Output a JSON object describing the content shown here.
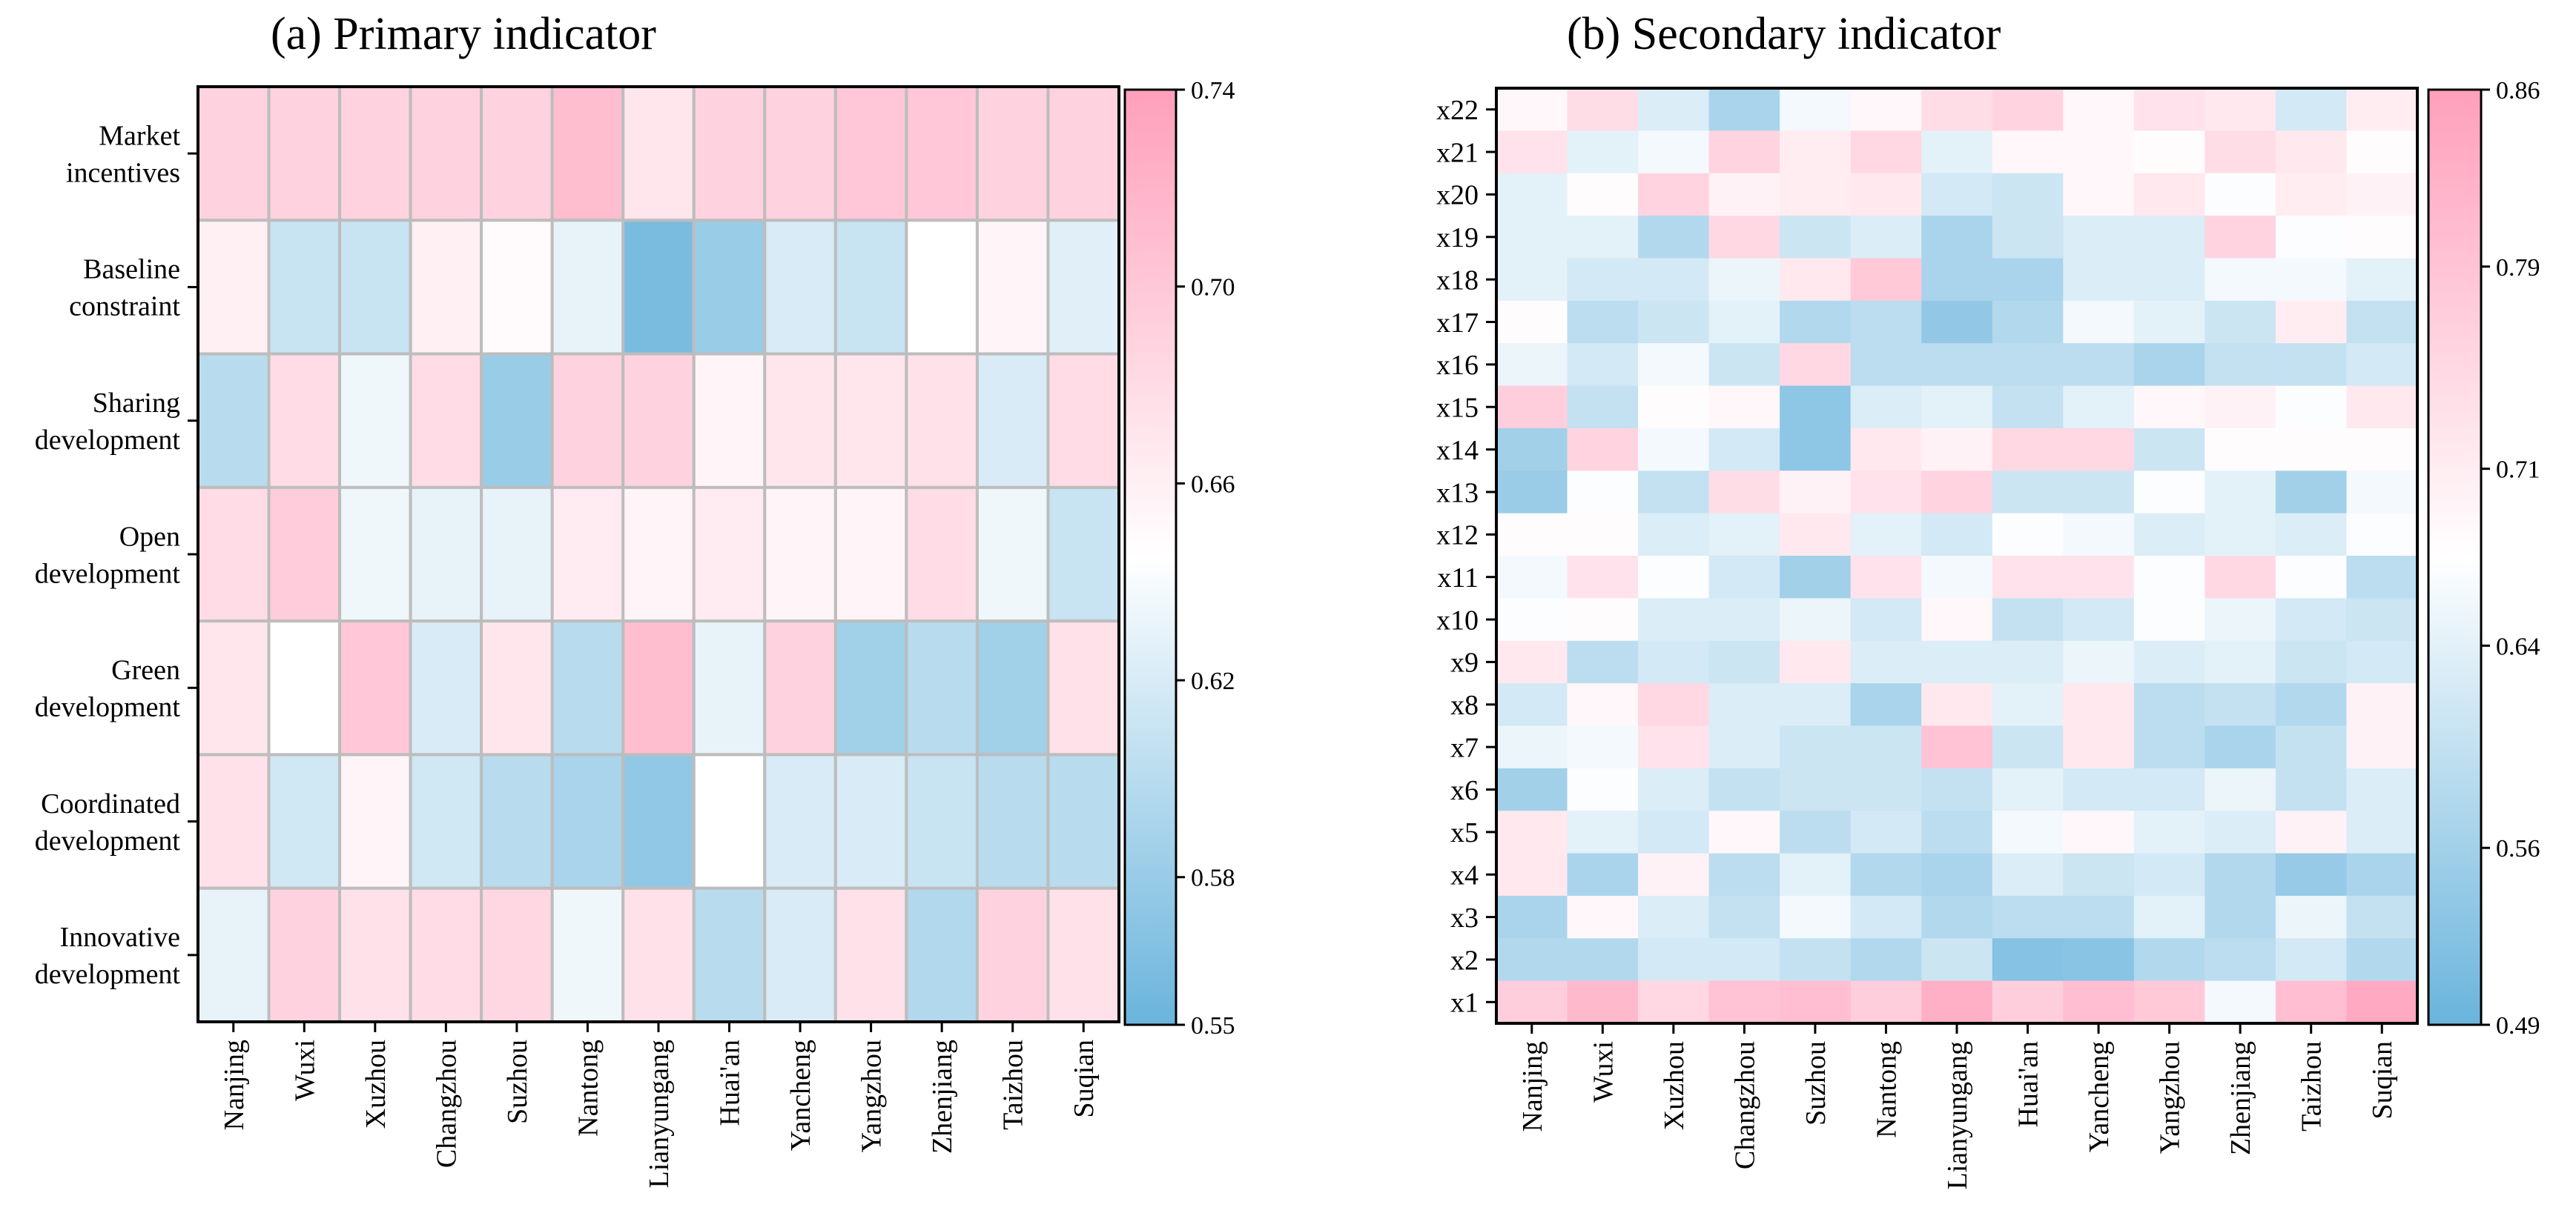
{
  "chart_data": [
    {
      "type": "heatmap",
      "title": "(a)  Primary indicator",
      "x_categories": [
        "Nanjing",
        "Wuxi",
        "Xuzhou",
        "Changzhou",
        "Suzhou",
        "Nantong",
        "Lianyungang",
        "Huai'an",
        "Yancheng",
        "Yangzhou",
        "Zhenjiang",
        "Taizhou",
        "Suqian"
      ],
      "y_categories": [
        [
          "Market",
          "incentives"
        ],
        [
          "Baseline",
          "constraint"
        ],
        [
          "Sharing",
          "development"
        ],
        [
          "Open",
          "development"
        ],
        [
          "Green",
          "development"
        ],
        [
          "Coordinated",
          "development"
        ],
        [
          "Innovative",
          "development"
        ]
      ],
      "values": [
        [
          0.69,
          0.69,
          0.69,
          0.69,
          0.69,
          0.71,
          0.67,
          0.69,
          0.69,
          0.7,
          0.7,
          0.69,
          0.69
        ],
        [
          0.66,
          0.61,
          0.61,
          0.66,
          0.65,
          0.63,
          0.56,
          0.58,
          0.62,
          0.61,
          0.645,
          0.655,
          0.625
        ],
        [
          0.6,
          0.68,
          0.635,
          0.68,
          0.58,
          0.69,
          0.69,
          0.655,
          0.67,
          0.67,
          0.675,
          0.62,
          0.68
        ],
        [
          0.68,
          0.695,
          0.635,
          0.63,
          0.63,
          0.665,
          0.655,
          0.665,
          0.655,
          0.655,
          0.68,
          0.635,
          0.61
        ],
        [
          0.67,
          0.645,
          0.7,
          0.62,
          0.67,
          0.6,
          0.71,
          0.63,
          0.69,
          0.585,
          0.6,
          0.585,
          0.675
        ],
        [
          0.675,
          0.615,
          0.655,
          0.615,
          0.6,
          0.59,
          0.575,
          0.645,
          0.62,
          0.62,
          0.61,
          0.6,
          0.6
        ],
        [
          0.63,
          0.69,
          0.675,
          0.68,
          0.685,
          0.635,
          0.675,
          0.6,
          0.62,
          0.675,
          0.595,
          0.69,
          0.675
        ]
      ],
      "vmin": 0.55,
      "vmax": 0.74,
      "colorbar_ticks": [
        "0.74",
        "0.70",
        "0.66",
        "0.62",
        "0.58",
        "0.55"
      ],
      "cell_grid": true
    },
    {
      "type": "heatmap",
      "title": "(b)  Secondary indicator",
      "x_categories": [
        "Nanjing",
        "Wuxi",
        "Xuzhou",
        "Changzhou",
        "Suzhou",
        "Nantong",
        "Lianyungang",
        "Huai'an",
        "Yancheng",
        "Yangzhou",
        "Zhenjiang",
        "Taizhou",
        "Suqian"
      ],
      "y_categories": [
        "x22",
        "x21",
        "x20",
        "x19",
        "x18",
        "x17",
        "x16",
        "x15",
        "x14",
        "x13",
        "x12",
        "x11",
        "x10",
        "x9",
        "x8",
        "x7",
        "x6",
        "x5",
        "x4",
        "x3",
        "x2",
        "x1"
      ],
      "values": [
        [
          0.69,
          0.74,
          0.63,
          0.57,
          0.66,
          0.69,
          0.74,
          0.76,
          0.69,
          0.73,
          0.72,
          0.62,
          0.71
        ],
        [
          0.73,
          0.64,
          0.66,
          0.76,
          0.71,
          0.75,
          0.64,
          0.69,
          0.69,
          0.68,
          0.74,
          0.72,
          0.68
        ],
        [
          0.64,
          0.68,
          0.76,
          0.7,
          0.71,
          0.72,
          0.62,
          0.61,
          0.69,
          0.72,
          0.67,
          0.71,
          0.7
        ],
        [
          0.64,
          0.64,
          0.58,
          0.75,
          0.61,
          0.63,
          0.57,
          0.61,
          0.63,
          0.63,
          0.76,
          0.67,
          0.68
        ],
        [
          0.64,
          0.62,
          0.62,
          0.65,
          0.72,
          0.78,
          0.57,
          0.57,
          0.63,
          0.63,
          0.66,
          0.66,
          0.64
        ],
        [
          0.68,
          0.59,
          0.61,
          0.64,
          0.58,
          0.59,
          0.54,
          0.58,
          0.66,
          0.64,
          0.61,
          0.71,
          0.6
        ],
        [
          0.65,
          0.62,
          0.66,
          0.61,
          0.75,
          0.59,
          0.59,
          0.59,
          0.59,
          0.57,
          0.6,
          0.6,
          0.62
        ],
        [
          0.77,
          0.6,
          0.68,
          0.69,
          0.535,
          0.63,
          0.64,
          0.6,
          0.64,
          0.69,
          0.7,
          0.67,
          0.72
        ],
        [
          0.56,
          0.76,
          0.66,
          0.62,
          0.535,
          0.72,
          0.7,
          0.75,
          0.75,
          0.61,
          0.68,
          0.68,
          0.68
        ],
        [
          0.55,
          0.67,
          0.6,
          0.74,
          0.7,
          0.73,
          0.76,
          0.61,
          0.61,
          0.67,
          0.64,
          0.56,
          0.66
        ],
        [
          0.68,
          0.68,
          0.63,
          0.64,
          0.72,
          0.64,
          0.62,
          0.67,
          0.66,
          0.63,
          0.64,
          0.63,
          0.67
        ],
        [
          0.66,
          0.73,
          0.67,
          0.62,
          0.56,
          0.73,
          0.66,
          0.73,
          0.73,
          0.67,
          0.75,
          0.67,
          0.59
        ],
        [
          0.67,
          0.68,
          0.63,
          0.63,
          0.65,
          0.62,
          0.69,
          0.6,
          0.62,
          0.67,
          0.65,
          0.62,
          0.61
        ],
        [
          0.72,
          0.59,
          0.62,
          0.61,
          0.72,
          0.63,
          0.63,
          0.63,
          0.65,
          0.63,
          0.64,
          0.61,
          0.62
        ],
        [
          0.62,
          0.69,
          0.75,
          0.63,
          0.63,
          0.57,
          0.72,
          0.64,
          0.72,
          0.59,
          0.6,
          0.58,
          0.7
        ],
        [
          0.65,
          0.66,
          0.73,
          0.63,
          0.61,
          0.61,
          0.79,
          0.61,
          0.72,
          0.59,
          0.57,
          0.6,
          0.7
        ],
        [
          0.56,
          0.67,
          0.63,
          0.6,
          0.61,
          0.61,
          0.6,
          0.64,
          0.62,
          0.62,
          0.65,
          0.6,
          0.63
        ],
        [
          0.72,
          0.64,
          0.62,
          0.69,
          0.59,
          0.62,
          0.59,
          0.66,
          0.69,
          0.64,
          0.63,
          0.7,
          0.63
        ],
        [
          0.72,
          0.57,
          0.7,
          0.59,
          0.64,
          0.58,
          0.57,
          0.63,
          0.61,
          0.62,
          0.58,
          0.545,
          0.57
        ],
        [
          0.57,
          0.69,
          0.63,
          0.6,
          0.66,
          0.62,
          0.58,
          0.59,
          0.59,
          0.64,
          0.58,
          0.65,
          0.6
        ],
        [
          0.58,
          0.58,
          0.62,
          0.62,
          0.6,
          0.58,
          0.61,
          0.525,
          0.53,
          0.58,
          0.59,
          0.62,
          0.58
        ],
        [
          0.77,
          0.81,
          0.75,
          0.79,
          0.8,
          0.77,
          0.83,
          0.77,
          0.8,
          0.78,
          0.66,
          0.8,
          0.84
        ]
      ],
      "vmin": 0.49,
      "vmax": 0.86,
      "colorbar_ticks": [
        "0.86",
        "0.79",
        "0.71",
        "0.64",
        "0.56",
        "0.49"
      ],
      "cell_grid": false
    }
  ],
  "colors": {
    "low": "#6ab4dc",
    "mid": "#ffffff",
    "high": "#ff9fbb",
    "grid": "#bdbdbd"
  }
}
